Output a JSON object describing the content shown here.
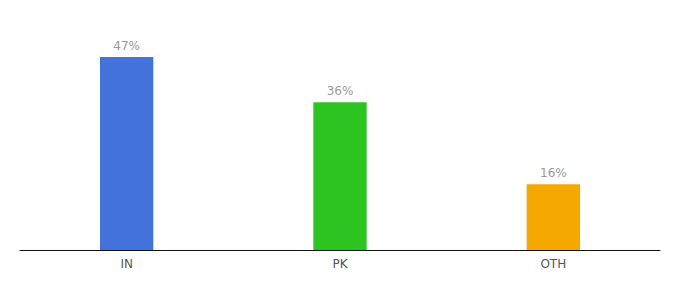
{
  "chart_data": {
    "type": "bar",
    "categories": [
      "IN",
      "PK",
      "OTH"
    ],
    "values": [
      47,
      36,
      16
    ],
    "value_labels": [
      "47%",
      "36%",
      "16%"
    ],
    "colors": [
      "#4472db",
      "#2dc422",
      "#f5a800"
    ],
    "ylim": [
      0,
      56
    ],
    "tick_labels": "x",
    "grid": false
  }
}
